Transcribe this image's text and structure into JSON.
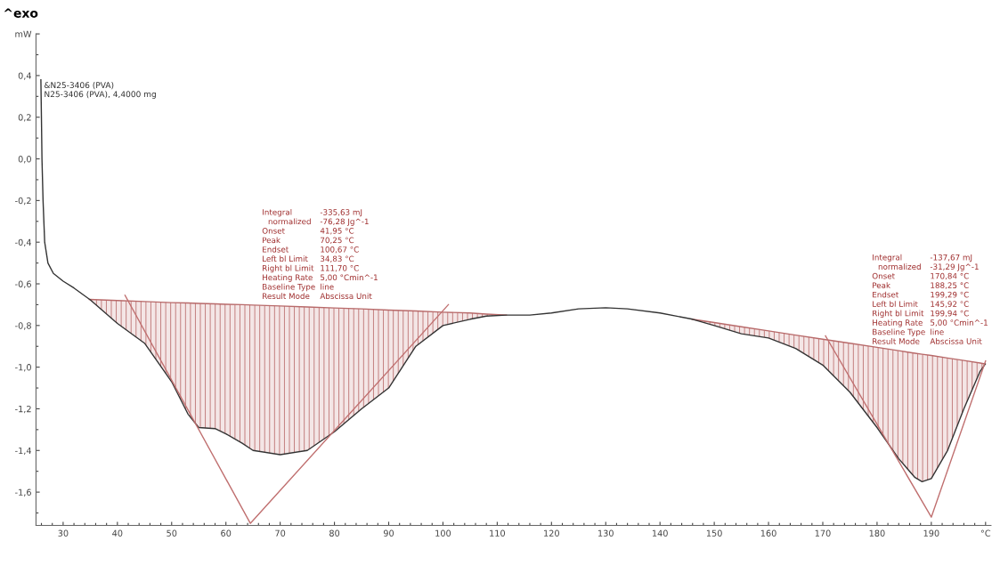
{
  "chart_data": {
    "type": "line",
    "title": "^exo",
    "xlim": [
      25,
      201
    ],
    "ylim": [
      -1.76,
      0.6
    ],
    "xticks": [
      30,
      40,
      50,
      60,
      70,
      80,
      90,
      100,
      110,
      120,
      130,
      140,
      150,
      160,
      170,
      180,
      190,
      {
        "value": 200,
        "label": "°C"
      },
      {
        "value": 26,
        "label": null
      },
      {
        "value": 28,
        "label": null
      },
      {
        "value": 32,
        "label": null
      },
      {
        "value": 34,
        "label": null
      },
      {
        "value": 36,
        "label": null
      },
      {
        "value": 38,
        "label": null
      },
      {
        "value": 42,
        "label": null
      },
      {
        "value": 44,
        "label": null
      },
      {
        "value": 46,
        "label": null
      },
      {
        "value": 48,
        "label": null
      },
      {
        "value": 52,
        "label": null
      },
      {
        "value": 54,
        "label": null
      },
      {
        "value": 56,
        "label": null
      },
      {
        "value": 58,
        "label": null
      },
      {
        "value": 62,
        "label": null
      },
      {
        "value": 64,
        "label": null
      },
      {
        "value": 66,
        "label": null
      },
      {
        "value": 68,
        "label": null
      },
      {
        "value": 72,
        "label": null
      },
      {
        "value": 74,
        "label": null
      },
      {
        "value": 76,
        "label": null
      },
      {
        "value": 78,
        "label": null
      },
      {
        "value": 82,
        "label": null
      },
      {
        "value": 84,
        "label": null
      },
      {
        "value": 86,
        "label": null
      },
      {
        "value": 88,
        "label": null
      },
      {
        "value": 92,
        "label": null
      },
      {
        "value": 94,
        "label": null
      },
      {
        "value": 96,
        "label": null
      },
      {
        "value": 98,
        "label": null
      },
      {
        "value": 102,
        "label": null
      },
      {
        "value": 104,
        "label": null
      },
      {
        "value": 106,
        "label": null
      },
      {
        "value": 108,
        "label": null
      },
      {
        "value": 112,
        "label": null
      },
      {
        "value": 114,
        "label": null
      },
      {
        "value": 116,
        "label": null
      },
      {
        "value": 118,
        "label": null
      },
      {
        "value": 122,
        "label": null
      },
      {
        "value": 124,
        "label": null
      },
      {
        "value": 126,
        "label": null
      },
      {
        "value": 128,
        "label": null
      },
      {
        "value": 132,
        "label": null
      },
      {
        "value": 134,
        "label": null
      },
      {
        "value": 136,
        "label": null
      },
      {
        "value": 138,
        "label": null
      },
      {
        "value": 142,
        "label": null
      },
      {
        "value": 144,
        "label": null
      },
      {
        "value": 146,
        "label": null
      },
      {
        "value": 148,
        "label": null
      },
      {
        "value": 152,
        "label": null
      },
      {
        "value": 154,
        "label": null
      },
      {
        "value": 156,
        "label": null
      },
      {
        "value": 158,
        "label": null
      },
      {
        "value": 162,
        "label": null
      },
      {
        "value": 164,
        "label": null
      },
      {
        "value": 166,
        "label": null
      },
      {
        "value": 168,
        "label": null
      },
      {
        "value": 172,
        "label": null
      },
      {
        "value": 174,
        "label": null
      },
      {
        "value": 176,
        "label": null
      },
      {
        "value": 178,
        "label": null
      },
      {
        "value": 182,
        "label": null
      },
      {
        "value": 184,
        "label": null
      },
      {
        "value": 186,
        "label": null
      },
      {
        "value": 188,
        "label": null
      },
      {
        "value": 192,
        "label": null
      },
      {
        "value": 194,
        "label": null
      },
      {
        "value": 196,
        "label": null
      },
      {
        "value": 198,
        "label": null
      }
    ],
    "yticks": [
      {
        "value": 0.4,
        "label": "0,4"
      },
      {
        "value": 0.2,
        "label": "0,2"
      },
      {
        "value": 0.0,
        "label": "0,0"
      },
      {
        "value": -0.2,
        "label": "-0,2"
      },
      {
        "value": -0.4,
        "label": "-0,4"
      },
      {
        "value": -0.6,
        "label": "-0,6"
      },
      {
        "value": -0.8,
        "label": "-0,8"
      },
      {
        "value": -1.0,
        "label": "-1,0"
      },
      {
        "value": -1.2,
        "label": "-1,2"
      },
      {
        "value": -1.4,
        "label": "-1,4"
      },
      {
        "value": -1.6,
        "label": "-1,6"
      },
      {
        "value": 0.6,
        "label": "mW"
      },
      {
        "value": 0.5,
        "label": null
      },
      {
        "value": 0.3,
        "label": null
      },
      {
        "value": 0.1,
        "label": null
      },
      {
        "value": -0.1,
        "label": null
      },
      {
        "value": -0.3,
        "label": null
      },
      {
        "value": -0.5,
        "label": null
      },
      {
        "value": -0.7,
        "label": null
      },
      {
        "value": -0.9,
        "label": null
      },
      {
        "value": -1.1,
        "label": null
      },
      {
        "value": -1.3,
        "label": null
      },
      {
        "value": -1.5,
        "label": null
      },
      {
        "value": -1.7,
        "label": null
      }
    ],
    "grid": false,
    "legend": false,
    "series": [
      {
        "type": "line",
        "color": "#b86a6a",
        "x": [
          34.83,
          40,
          45,
          50,
          53,
          55,
          58,
          60,
          63,
          65,
          70,
          75,
          80,
          85,
          90,
          95,
          100,
          105,
          108,
          111.7
        ],
        "values": [
          -0.675,
          -0.68,
          -0.685,
          -0.69,
          -0.692,
          -0.694,
          -0.696,
          -0.698,
          -0.7,
          -0.702,
          -0.706,
          -0.711,
          -0.716,
          -0.72,
          -0.726,
          -0.73,
          -0.736,
          -0.74,
          -0.745,
          -0.75
        ],
        "upper": [
          -0.675,
          -0.68,
          -0.685,
          -0.69,
          -0.692,
          -0.694,
          -0.696,
          -0.698,
          -0.7,
          -0.702,
          -0.706,
          -0.711,
          -0.716,
          -0.72,
          -0.726,
          -0.73,
          -0.736,
          -0.74,
          -0.745,
          -0.75
        ],
        "lower": [
          -0.675,
          -0.79,
          -0.885,
          -1.07,
          -1.225,
          -1.29,
          -1.295,
          -1.32,
          -1.365,
          -1.4,
          -1.42,
          -1.4,
          -1.31,
          -1.2,
          -1.1,
          -0.9,
          -0.8,
          -0.77,
          -0.755,
          -0.75
        ]
      },
      {
        "type": "line",
        "color": "#b86a6a",
        "x": [
          145.92,
          150,
          155,
          160,
          165,
          170,
          175,
          180,
          184,
          187,
          188.3,
          190,
          193,
          196,
          199,
          199.94
        ],
        "values": [
          -0.77,
          -0.786,
          -0.806,
          -0.826,
          -0.846,
          -0.866,
          -0.885,
          -0.905,
          -0.921,
          -0.933,
          -0.938,
          -0.944,
          -0.956,
          -0.968,
          -0.98,
          -0.985
        ],
        "upper": [
          -0.77,
          -0.786,
          -0.806,
          -0.826,
          -0.846,
          -0.866,
          -0.885,
          -0.905,
          -0.921,
          -0.933,
          -0.938,
          -0.944,
          -0.956,
          -0.968,
          -0.98,
          -0.985
        ],
        "lower": [
          -0.77,
          -0.8,
          -0.84,
          -0.86,
          -0.91,
          -0.99,
          -1.12,
          -1.29,
          -1.44,
          -1.53,
          -1.55,
          -1.535,
          -1.4,
          -1.2,
          -1.02,
          -0.985
        ]
      },
      {
        "type": "line",
        "color": "#333333",
        "x": [
          25.9,
          26.0,
          26.1,
          26.3,
          26.6,
          27.2,
          28.2,
          30,
          32,
          35,
          40,
          45,
          50,
          53,
          55,
          58,
          60,
          63,
          65,
          70,
          75,
          80,
          85,
          90,
          95,
          100,
          105,
          108,
          111.7,
          116,
          120,
          125,
          130,
          134,
          140,
          146,
          150,
          155,
          160,
          165,
          170,
          175,
          180,
          184,
          187,
          188.3,
          190,
          193,
          196,
          199,
          199.94
        ],
        "values": [
          0.38,
          0.2,
          0.0,
          -0.2,
          -0.4,
          -0.5,
          -0.55,
          -0.587,
          -0.62,
          -0.677,
          -0.79,
          -0.885,
          -1.07,
          -1.225,
          -1.29,
          -1.295,
          -1.32,
          -1.365,
          -1.4,
          -1.42,
          -1.4,
          -1.31,
          -1.2,
          -1.1,
          -0.9,
          -0.8,
          -0.77,
          -0.755,
          -0.75,
          -0.75,
          -0.74,
          -0.72,
          -0.715,
          -0.72,
          -0.74,
          -0.77,
          -0.8,
          -0.84,
          -0.86,
          -0.91,
          -0.99,
          -1.12,
          -1.29,
          -1.44,
          -1.53,
          -1.55,
          -1.535,
          -1.4,
          -1.2,
          -1.02,
          -0.985
        ]
      },
      {
        "type": "line",
        "color": "#c07070",
        "x": [
          41.4,
          64.5,
          101
        ],
        "values": [
          -0.655,
          -1.75,
          -0.7
        ]
      },
      {
        "type": "line",
        "color": "#c07070",
        "x": [
          170.5,
          190,
          200
        ],
        "values": [
          -0.85,
          -1.72,
          -0.97
        ]
      }
    ],
    "annotations": [
      "&N25-3406 (PVA)\nN25-3406 (PVA), 4,4000 mg",
      "Integral",
      "-335,63 mJ",
      "normalized",
      "-76,28 Jg^-1",
      "Onset",
      "41,95 °C",
      "Peak",
      "70,25 °C",
      "Endset",
      "100,67 °C",
      "Left bl Limit",
      "34,83 °C",
      "Right bl Limit",
      "111,70 °C",
      "Heating Rate",
      "5,00 °Cmin^-1",
      "Baseline Type",
      "line",
      "Result Mode",
      "Abscissa Unit",
      "Integral",
      "-137,67 mJ",
      "normalized",
      "-31,29 Jg^-1",
      "Onset",
      "170,84 °C",
      "Peak",
      "188,25 °C",
      "Endset",
      "199,29 °C",
      "Left bl Limit",
      "145,92 °C",
      "Right bl Limit",
      "199,94 °C",
      "Heating Rate",
      "5,00 °Cmin^-1",
      "Baseline Type",
      "line",
      "Result Mode",
      "Abscissa Unit"
    ]
  }
}
